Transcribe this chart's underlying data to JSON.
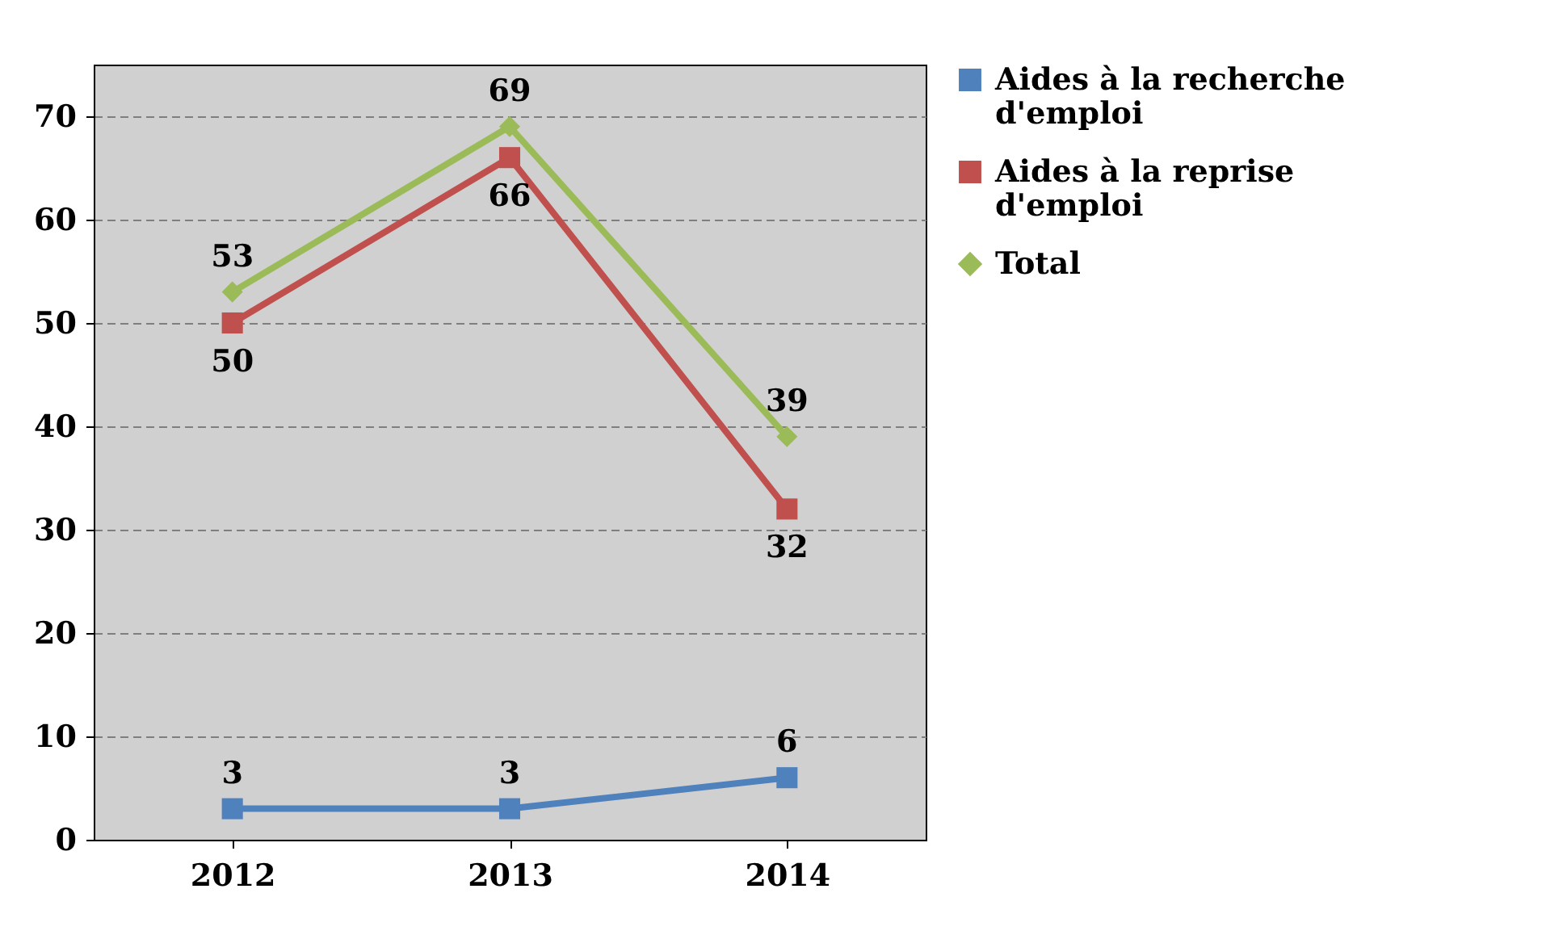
{
  "chart_data": {
    "type": "line",
    "categories": [
      "2012",
      "2013",
      "2014"
    ],
    "series": [
      {
        "name": "Aides à la recherche d'emploi",
        "color": "#4f81bd",
        "marker": "square",
        "values": [
          3,
          3,
          6
        ]
      },
      {
        "name": "Aides à la reprise d'emploi",
        "color": "#c0504d",
        "marker": "square",
        "values": [
          50,
          66,
          32
        ]
      },
      {
        "name": "Total",
        "color": "#9bbb59",
        "marker": "diamond",
        "values": [
          53,
          69,
          39
        ]
      }
    ],
    "ylim": [
      0,
      75
    ],
    "yticks": [
      0,
      10,
      20,
      30,
      40,
      50,
      60,
      70
    ],
    "grid": "y",
    "legend": "right",
    "data_labels": true
  }
}
